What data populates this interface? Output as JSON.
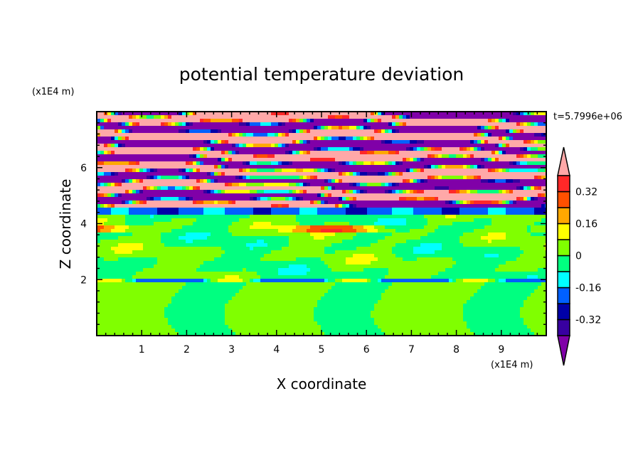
{
  "chart_data": {
    "type": "heatmap",
    "title": "potential temperature deviation",
    "xlabel": "X coordinate",
    "ylabel": "Z coordinate",
    "x_unit": "(x1E4 m)",
    "y_unit": "(x1E4 m)",
    "time_label": "t=5.7996e+06",
    "xlim": [
      0,
      10
    ],
    "ylim": [
      0,
      8
    ],
    "x_ticks": [
      1,
      2,
      3,
      4,
      5,
      6,
      7,
      8,
      9
    ],
    "y_ticks": [
      2,
      4,
      6
    ],
    "levels": [
      -0.4,
      -0.32,
      -0.24,
      -0.16,
      -0.08,
      0,
      0.08,
      0.16,
      0.24,
      0.32,
      0.4
    ],
    "colorbar_labels": [
      "0.32",
      "0.16",
      "0",
      "-0.16",
      "-0.32"
    ],
    "colorbar_label_values": [
      0.32,
      0.16,
      0,
      -0.16,
      -0.32
    ],
    "colors": {
      "over": "#ffa8a8",
      "bins": [
        "#3800a0",
        "#0000a8",
        "#0060ff",
        "#00ffff",
        "#00ff80",
        "#80ff00",
        "#ffff00",
        "#ffa800",
        "#ff5000",
        "#ff2828"
      ],
      "under": "#8000a8"
    }
  }
}
